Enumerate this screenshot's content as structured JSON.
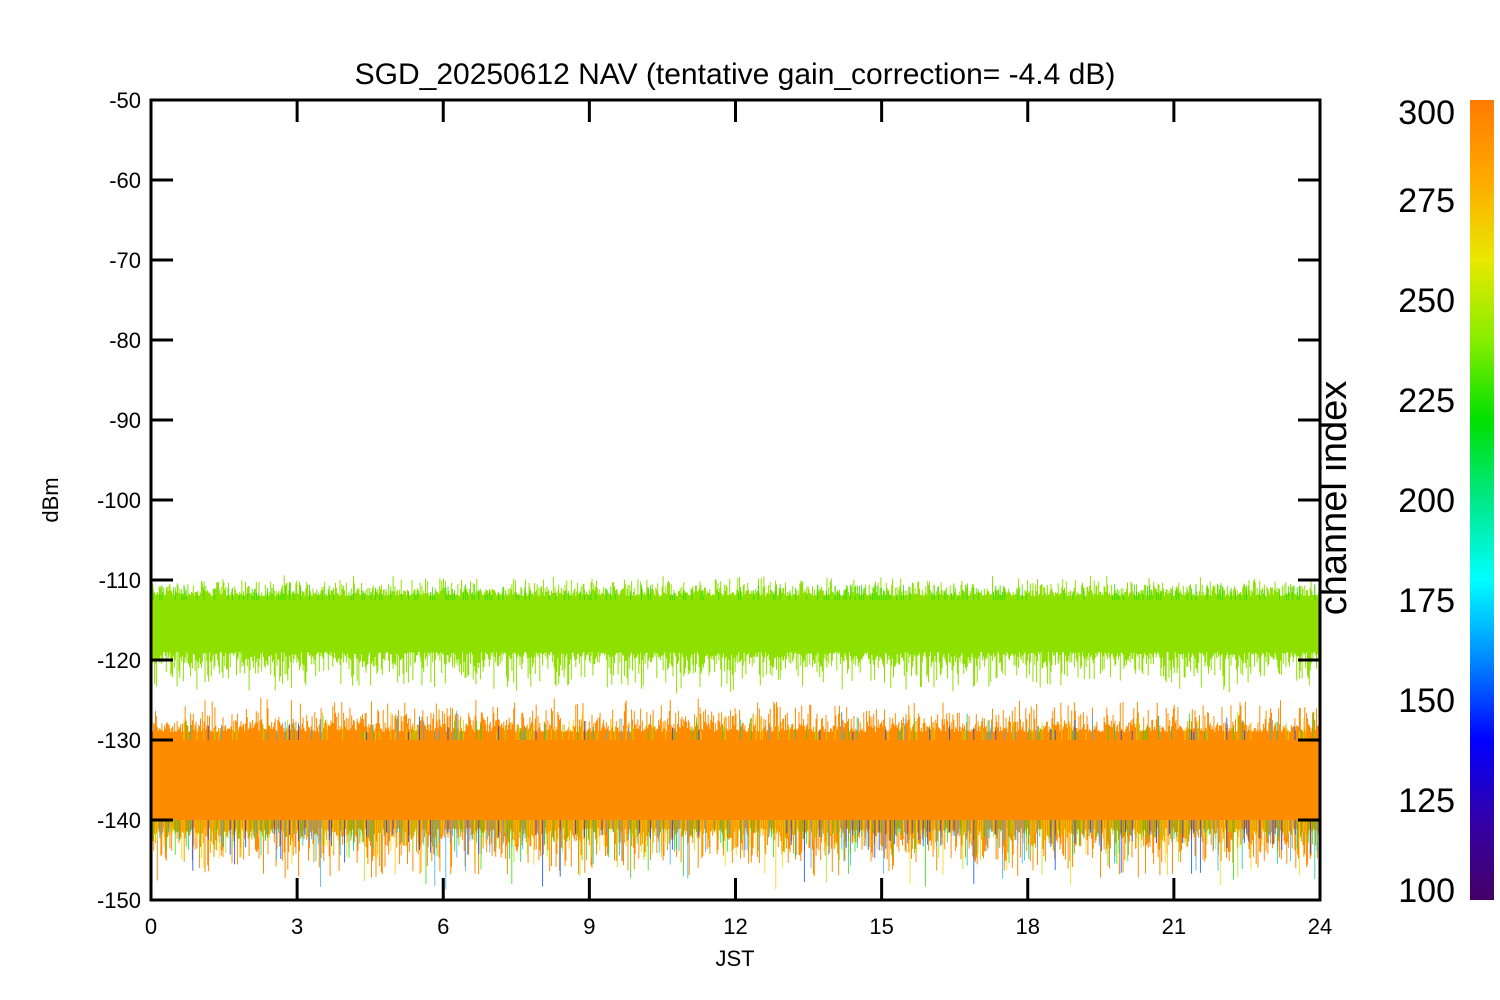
{
  "chart_data": {
    "type": "line",
    "title": "SGD_20250612 NAV (tentative gain_correction= -4.4 dB)",
    "xlabel": "JST",
    "ylabel": "dBm",
    "xlim": [
      0,
      24
    ],
    "ylim": [
      -150,
      -50
    ],
    "xticks": [
      "0",
      "3",
      "6",
      "9",
      "12",
      "15",
      "18",
      "21",
      "24"
    ],
    "yticks": [
      "-50",
      "-60",
      "-70",
      "-80",
      "-90",
      "-100",
      "-110",
      "-120",
      "-130",
      "-140",
      "-150"
    ],
    "grid": false,
    "bands": [
      {
        "y_center": -115.5,
        "y_min": -119,
        "y_max": -112,
        "outlier_min": -125,
        "outlier_max": -109,
        "dominant_channel": 255,
        "color": "#8ee000"
      },
      {
        "y_center": -135,
        "y_min": -141,
        "y_max": -129,
        "outlier_min": -148.5,
        "outlier_max": -124,
        "dominant_channel": 290,
        "color": "#ff8c00"
      }
    ],
    "colorbar": {
      "label": "channel index",
      "range": [
        100,
        300
      ],
      "ticks": [
        "100",
        "125",
        "150",
        "175",
        "200",
        "225",
        "250",
        "275",
        "300"
      ],
      "colors": [
        "#440066",
        "#3300aa",
        "#0000ff",
        "#0088ff",
        "#00ffff",
        "#00e888",
        "#00e000",
        "#88ee00",
        "#e8e800",
        "#ffaa00",
        "#ff7a00"
      ]
    }
  }
}
